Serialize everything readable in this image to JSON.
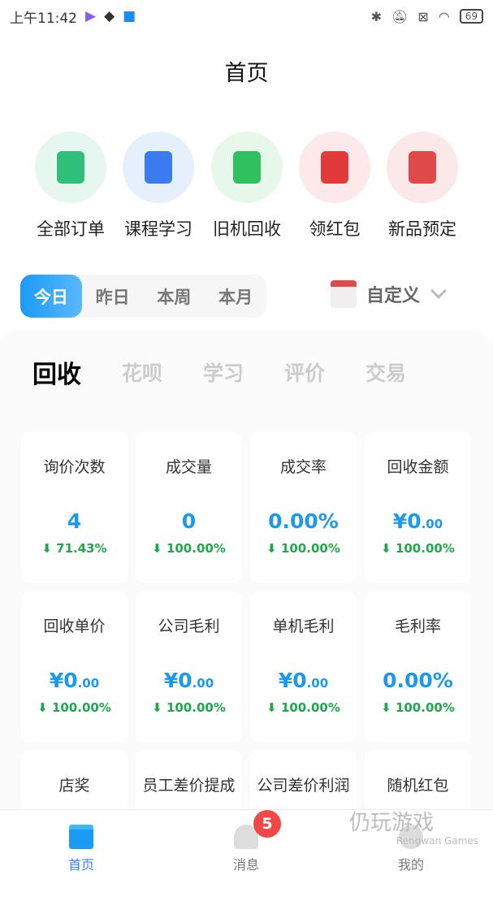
{
  "status": {
    "time": "上午11:42",
    "battery": "69"
  },
  "header": {
    "title": "首页"
  },
  "quick_menu": [
    {
      "label": "全部订单",
      "color": "#2fbf7a",
      "bg": "#e6f7ef"
    },
    {
      "label": "课程学习",
      "color": "#3a7bf0",
      "bg": "#e6f0fc"
    },
    {
      "label": "旧机回收",
      "color": "#30c060",
      "bg": "#e7f8ea"
    },
    {
      "label": "领红包",
      "color": "#e03a3a",
      "bg": "#fde9e9"
    },
    {
      "label": "新品预定",
      "color": "#e04a4a",
      "bg": "#fbe8e8"
    }
  ],
  "period_tabs": [
    "今日",
    "昨日",
    "本周",
    "本月"
  ],
  "custom_label": "自定义",
  "category_tabs": [
    "回收",
    "花呗",
    "学习",
    "评价",
    "交易"
  ],
  "metrics": [
    {
      "label": "询价次数",
      "value": "4",
      "cents": "",
      "change": "71.43%"
    },
    {
      "label": "成交量",
      "value": "0",
      "cents": "",
      "change": "100.00%"
    },
    {
      "label": "成交率",
      "value": "0.00%",
      "cents": "",
      "change": "100.00%"
    },
    {
      "label": "回收金额",
      "value": "¥0",
      "cents": ".00",
      "change": "100.00%"
    },
    {
      "label": "回收单价",
      "value": "¥0",
      "cents": ".00",
      "change": "100.00%"
    },
    {
      "label": "公司毛利",
      "value": "¥0",
      "cents": ".00",
      "change": "100.00%"
    },
    {
      "label": "单机毛利",
      "value": "¥0",
      "cents": ".00",
      "change": "100.00%"
    },
    {
      "label": "毛利率",
      "value": "0.00%",
      "cents": "",
      "change": "100.00%"
    },
    {
      "label": "店奖"
    },
    {
      "label": "员工差价提成"
    },
    {
      "label": "公司差价利润"
    },
    {
      "label": "随机红包"
    }
  ],
  "bottom_nav": [
    {
      "label": "首页",
      "active": true
    },
    {
      "label": "消息",
      "badge": "5"
    },
    {
      "label": "我的"
    }
  ],
  "watermark": {
    "text": "仍玩游戏",
    "sub": "Rengwan Games"
  }
}
